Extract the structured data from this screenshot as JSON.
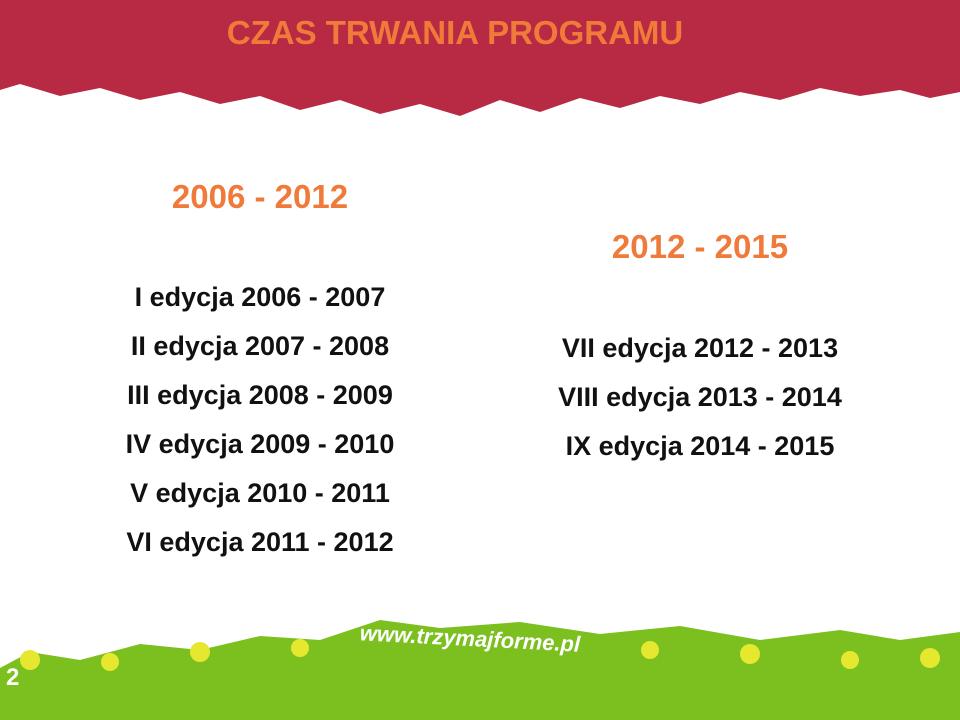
{
  "header": {
    "title": "CZAS TRWANIA PROGRAMU"
  },
  "left": {
    "heading": "2006 - 2012",
    "items": [
      "I edycja 2006 - 2007",
      "II edycja 2007 - 2008",
      "III edycja 2008 - 2009",
      "IV edycja 2009 - 2010",
      "V edycja 2010 - 2011",
      "VI edycja 2011 - 2012"
    ]
  },
  "right": {
    "heading": "2012 - 2015",
    "items": [
      "VII edycja 2012 - 2013",
      "VIII edycja 2013 - 2014",
      "IX edycja 2014 - 2015"
    ]
  },
  "footer": {
    "url": "www.trzymajforme.pl",
    "page": "2"
  }
}
